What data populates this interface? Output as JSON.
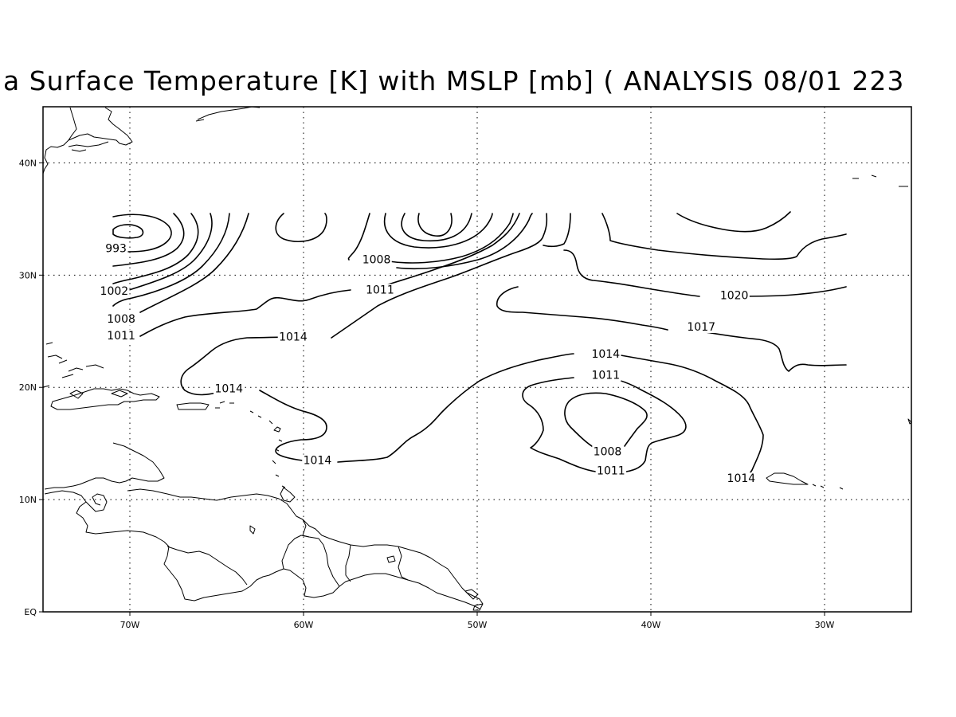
{
  "title": "a Surface Temperature [K] with MSLP [mb] ( ANALYSIS 08/01 223",
  "axes": {
    "lon_range": [
      -75,
      -25
    ],
    "lat_range": [
      0,
      45
    ],
    "x_ticks": [
      {
        "value": -70,
        "label": "70W"
      },
      {
        "value": -60,
        "label": "60W"
      },
      {
        "value": -50,
        "label": "50W"
      },
      {
        "value": -40,
        "label": "40W"
      },
      {
        "value": -30,
        "label": "30W"
      }
    ],
    "y_ticks": [
      {
        "value": 0,
        "label": "EQ"
      },
      {
        "value": 10,
        "label": "10N"
      },
      {
        "value": 20,
        "label": "20N"
      },
      {
        "value": 30,
        "label": "30N"
      },
      {
        "value": 40,
        "label": "40N"
      }
    ],
    "grid": true
  },
  "contour_labels": [
    {
      "text": "993",
      "lon": -70.8,
      "lat": 32.2
    },
    {
      "text": "1002",
      "lon": -70.9,
      "lat": 28.4
    },
    {
      "text": "1008",
      "lon": -70.5,
      "lat": 25.9
    },
    {
      "text": "1011",
      "lon": -70.5,
      "lat": 24.4
    },
    {
      "text": "1008",
      "lon": -55.8,
      "lat": 31.2
    },
    {
      "text": "1011",
      "lon": -55.6,
      "lat": 28.5
    },
    {
      "text": "1014",
      "lon": -60.6,
      "lat": 24.3
    },
    {
      "text": "1014",
      "lon": -64.3,
      "lat": 19.7
    },
    {
      "text": "1014",
      "lon": -59.2,
      "lat": 13.3
    },
    {
      "text": "1014",
      "lon": -42.6,
      "lat": 22.8
    },
    {
      "text": "1011",
      "lon": -42.6,
      "lat": 20.9
    },
    {
      "text": "1008",
      "lon": -42.5,
      "lat": 14.1
    },
    {
      "text": "1011",
      "lon": -42.3,
      "lat": 12.4
    },
    {
      "text": "1014",
      "lon": -34.8,
      "lat": 11.7
    },
    {
      "text": "1017",
      "lon": -37.1,
      "lat": 25.2
    },
    {
      "text": "1020",
      "lon": -35.2,
      "lat": 28.0
    }
  ]
}
